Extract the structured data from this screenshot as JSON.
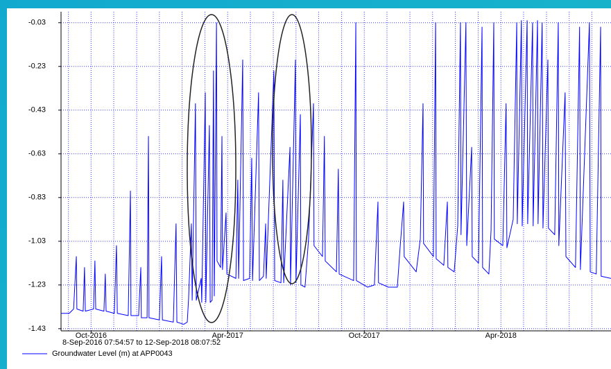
{
  "chart_data": {
    "type": "line",
    "subtitle": "8-Sep-2016 07:54:57 to 12-Sep-2018 08:07:52",
    "xlim": [
      2016.64,
      2018.653
    ],
    "xticks": [
      {
        "value": 2016.75,
        "label": "Oct-2016"
      },
      {
        "value": 2017.25,
        "label": "Apr-2017"
      },
      {
        "value": 2017.75,
        "label": "Oct-2017"
      },
      {
        "value": 2018.25,
        "label": "Apr-2018"
      }
    ],
    "x_minor_ticks": [
      2016.667,
      2016.75,
      2016.833,
      2016.917,
      2017,
      2017.083,
      2017.167,
      2017.25,
      2017.333,
      2017.417,
      2017.5,
      2017.583,
      2017.667,
      2017.75,
      2017.833,
      2017.917,
      2018,
      2018.083,
      2018.167,
      2018.25,
      2018.333,
      2018.417,
      2018.5,
      2018.583
    ],
    "ylim": [
      -1.44,
      0.02
    ],
    "yticks": [
      -0.03,
      -0.23,
      -0.43,
      -0.63,
      -0.83,
      -1.03,
      -1.23,
      -1.43
    ],
    "grid": true,
    "x": [
      2016.64,
      2016.67,
      2016.686,
      2016.696,
      2016.698,
      2016.721,
      2016.726,
      2016.729,
      2016.759,
      2016.764,
      2016.767,
      2016.797,
      2016.802,
      2016.805,
      2016.835,
      2016.843,
      2016.846,
      2016.886,
      2016.894,
      2016.896,
      2016.924,
      2016.932,
      2016.934,
      2016.955,
      2016.96,
      2016.962,
      2017.0,
      2017.008,
      2017.011,
      2017.051,
      2017.061,
      2017.064,
      2017.089,
      2017.102,
      2017.107,
      2017.117,
      2017.12,
      2017.132,
      2017.135,
      2017.153,
      2017.155,
      2017.168,
      2017.17,
      2017.183,
      2017.186,
      2017.193,
      2017.198,
      2017.201,
      2017.209,
      2017.211,
      2017.224,
      2017.229,
      2017.231,
      2017.244,
      2017.247,
      2017.28,
      2017.287,
      2017.29,
      2017.305,
      2017.308,
      2017.33,
      2017.338,
      2017.341,
      2017.363,
      2017.366,
      2017.381,
      2017.389,
      2017.391,
      2017.419,
      2017.422,
      2017.445,
      2017.452,
      2017.455,
      2017.478,
      2017.48,
      2017.498,
      2017.5,
      2017.516,
      2017.518,
      2017.533,
      2017.546,
      2017.564,
      2017.566,
      2017.597,
      2017.604,
      2017.607,
      2017.648,
      2017.655,
      2017.658,
      2017.711,
      2017.719,
      2017.721,
      2017.762,
      2017.787,
      2017.8,
      2017.802,
      2017.838,
      2017.871,
      2017.881,
      2017.894,
      2017.896,
      2017.94,
      2017.955,
      2017.965,
      2017.967,
      2018.003,
      2018.011,
      2018.013,
      2018.041,
      2018.054,
      2018.056,
      2018.079,
      2018.092,
      2018.102,
      2018.104,
      2018.122,
      2018.125,
      2018.143,
      2018.145,
      2018.168,
      2018.181,
      2018.183,
      2018.206,
      2018.214,
      2018.224,
      2018.226,
      2018.257,
      2018.269,
      2018.272,
      2018.295,
      2018.308,
      2018.31,
      2018.325,
      2018.328,
      2018.346,
      2018.348,
      2018.366,
      2018.368,
      2018.384,
      2018.386,
      2018.401,
      2018.404,
      2018.422,
      2018.424,
      2018.447,
      2018.46,
      2018.462,
      2018.485,
      2018.488,
      2018.523,
      2018.538,
      2018.541,
      2018.574,
      2018.577,
      2018.599,
      2018.615,
      2018.617,
      2018.653
    ],
    "series": [
      {
        "name": "Groundwater Level (m) at APP0043",
        "color": "#0000ff",
        "values": [
          -1.36,
          -1.36,
          -1.34,
          -1.1,
          -1.34,
          -1.35,
          -1.15,
          -1.35,
          -1.34,
          -1.12,
          -1.34,
          -1.35,
          -1.18,
          -1.35,
          -1.36,
          -1.05,
          -1.36,
          -1.37,
          -0.8,
          -1.37,
          -1.37,
          -1.15,
          -1.38,
          -1.38,
          -0.55,
          -1.38,
          -1.39,
          -1.1,
          -1.39,
          -1.4,
          -0.95,
          -1.4,
          -1.41,
          -1.4,
          -1.29,
          -0.95,
          -1.3,
          -0.4,
          -1.3,
          -1.2,
          -1.31,
          -0.35,
          -1.31,
          -0.5,
          -1.31,
          -1.3,
          -0.25,
          -1.28,
          -0.03,
          -1.12,
          -1.15,
          -0.55,
          -1.16,
          -0.9,
          -1.18,
          -1.2,
          -0.75,
          -1.2,
          -0.2,
          -1.21,
          -1.2,
          -0.65,
          -1.21,
          -0.35,
          -1.21,
          -1.19,
          -0.95,
          -1.2,
          -0.25,
          -1.21,
          -1.22,
          -0.75,
          -1.22,
          -0.6,
          -1.23,
          -0.2,
          -1.22,
          -0.45,
          -1.23,
          -1.24,
          -1.02,
          -0.4,
          -1.05,
          -1.1,
          -0.55,
          -1.12,
          -1.17,
          -0.7,
          -1.18,
          -1.21,
          -0.03,
          -1.21,
          -1.24,
          -1.23,
          -0.85,
          -1.22,
          -1.24,
          -1.24,
          -1.06,
          -0.85,
          -1.1,
          -1.17,
          -1.02,
          -0.4,
          -1.04,
          -1.1,
          -0.03,
          -1.11,
          -1.14,
          -0.85,
          -1.15,
          -1.17,
          -0.96,
          -0.03,
          -1.0,
          -0.03,
          -1.05,
          -0.6,
          -1.1,
          -1.13,
          -0.05,
          -1.15,
          -1.18,
          -0.98,
          -0.03,
          -1.02,
          -1.05,
          -0.4,
          -1.06,
          -0.93,
          -0.03,
          -0.95,
          -0.02,
          -0.96,
          -0.02,
          -0.95,
          -0.03,
          -0.96,
          -0.02,
          -0.95,
          -0.03,
          -0.97,
          -0.2,
          -0.97,
          -1.0,
          -0.03,
          -1.05,
          -0.35,
          -1.1,
          -1.15,
          -0.05,
          -1.16,
          -0.03,
          -1.17,
          -1.18,
          -0.05,
          -1.19,
          -1.2
        ]
      }
    ]
  }
}
